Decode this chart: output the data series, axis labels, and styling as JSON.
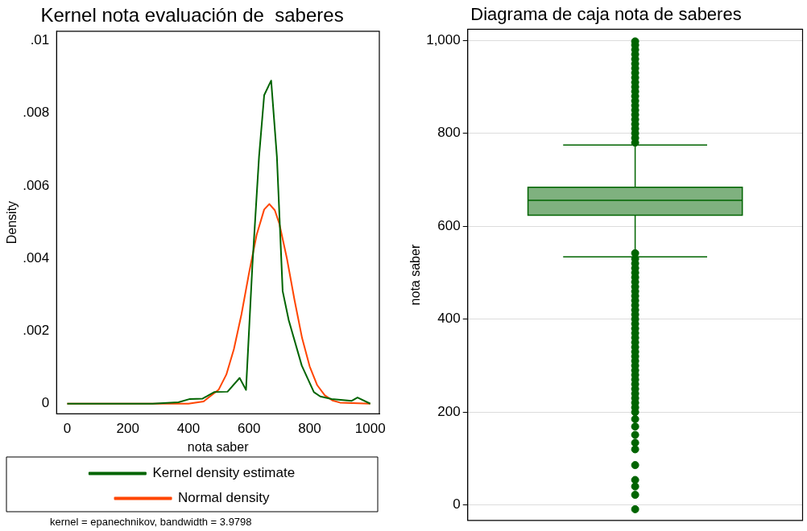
{
  "chart_data": [
    {
      "type": "line",
      "title": "Kernel nota evaluación de  saberes",
      "xlabel": "nota saber",
      "ylabel": "Density",
      "xlim": [
        -35,
        1030
      ],
      "ylim": [
        -0.00028,
        0.01026
      ],
      "xticks": [
        0,
        200,
        400,
        600,
        800,
        1000
      ],
      "yticks": [
        {
          "value": 0,
          "label": "0"
        },
        {
          "value": 0.002,
          "label": ".002"
        },
        {
          "value": 0.004,
          "label": ".004"
        },
        {
          "value": 0.006,
          "label": ".006"
        },
        {
          "value": 0.008,
          "label": ".008"
        },
        {
          "value": 0.01,
          "label": ".01"
        }
      ],
      "grid": false,
      "legend": "bottom",
      "marker": "none",
      "line_style": "solid",
      "series": [
        {
          "name": "Kernel density estimate",
          "color": "#006400",
          "x": [
            0,
            282,
            367,
            405,
            447,
            485,
            529,
            569,
            590,
            611,
            633,
            650,
            673,
            692,
            711,
            731,
            774,
            814,
            835,
            873,
            939,
            958,
            1000
          ],
          "values": [
            0,
            0,
            4e-05,
            0.00013,
            0.00014,
            0.00032,
            0.00033,
            0.00071,
            0.00038,
            0.0038,
            0.0068,
            0.0085,
            0.0089,
            0.0068,
            0.0031,
            0.0023,
            0.00105,
            0.00032,
            0.0002,
            0.00013,
            8e-05,
            0.00017,
            0
          ]
        },
        {
          "name": "Normal density",
          "color": "#ff4500",
          "x": [
            0,
            300,
            400,
            450,
            500,
            525,
            550,
            575,
            600,
            625,
            650,
            667,
            685,
            700,
            725,
            750,
            775,
            800,
            825,
            850,
            875,
            900,
            1000
          ],
          "values": [
            0,
            0,
            0,
            6e-05,
            0.00039,
            0.0008,
            0.0015,
            0.00246,
            0.0036,
            0.00465,
            0.00535,
            0.0055,
            0.00533,
            0.00496,
            0.004,
            0.00286,
            0.00181,
            0.00103,
            0.00051,
            0.00023,
            9e-05,
            3e-05,
            0
          ]
        }
      ],
      "annotations": [
        "kernel = epanechnikov, bandwidth = 3.9798"
      ]
    },
    {
      "type": "box",
      "title": "Diagrama de caja nota de saberes",
      "ylabel": "nota saber",
      "categories": [
        null
      ],
      "ylim": [
        -33,
        1024
      ],
      "yticks": [
        0,
        200,
        400,
        600,
        800,
        {
          "value": 1000,
          "label": "1,000"
        }
      ],
      "grid": "y",
      "tick_labels": "y",
      "series": [
        {
          "color": "#006400",
          "boxes": [
            {
              "low": 534,
              "q1": 624,
              "median": 656,
              "q3": 684,
              "high": 775,
              "outliers": [
                -9,
                22,
                40,
                54,
                86,
                120,
                134,
                151,
                169,
                185,
                200,
                210,
                220,
                230,
                240,
                250,
                260,
                270,
                280,
                290,
                300,
                310,
                320,
                330,
                340,
                350,
                360,
                370,
                380,
                390,
                400,
                410,
                420,
                430,
                440,
                450,
                460,
                470,
                480,
                490,
                500,
                510,
                520,
                530,
                542,
                780,
                790,
                800,
                810,
                820,
                830,
                840,
                850,
                860,
                870,
                880,
                890,
                900,
                910,
                920,
                930,
                940,
                950,
                960,
                970,
                980,
                990,
                998
              ]
            }
          ]
        }
      ]
    }
  ]
}
